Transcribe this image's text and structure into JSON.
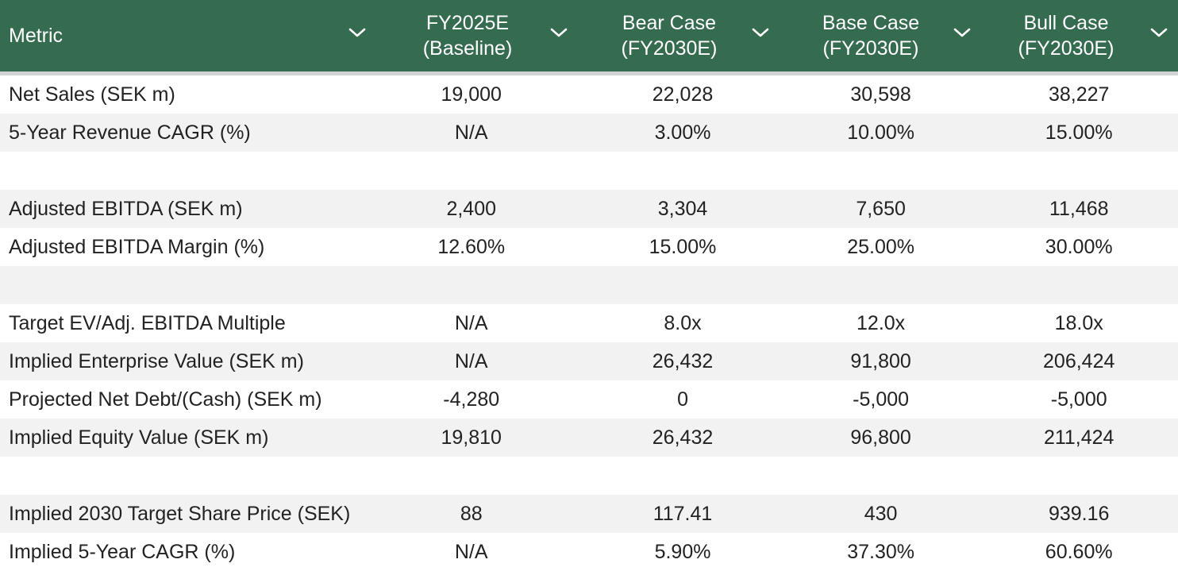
{
  "table": {
    "columns": [
      {
        "label": "Metric"
      },
      {
        "label": "FY2025E\n(Baseline)"
      },
      {
        "label": "Bear Case\n(FY2030E)"
      },
      {
        "label": "Base Case\n(FY2030E)"
      },
      {
        "label": "Bull Case\n(FY2030E)"
      }
    ],
    "rows": [
      {
        "metric": "Net Sales (SEK m)",
        "values": [
          "19,000",
          "22,028",
          "30,598",
          "38,227"
        ]
      },
      {
        "metric": "5-Year Revenue CAGR (%)",
        "values": [
          "N/A",
          "3.00%",
          "10.00%",
          "15.00%"
        ]
      },
      {
        "metric": "",
        "values": [
          "",
          "",
          "",
          ""
        ]
      },
      {
        "metric": "Adjusted EBITDA (SEK m)",
        "values": [
          "2,400",
          "3,304",
          "7,650",
          "11,468"
        ]
      },
      {
        "metric": "Adjusted EBITDA Margin (%)",
        "values": [
          "12.60%",
          "15.00%",
          "25.00%",
          "30.00%"
        ]
      },
      {
        "metric": "",
        "values": [
          "",
          "",
          "",
          ""
        ]
      },
      {
        "metric": "Target EV/Adj. EBITDA Multiple",
        "values": [
          "N/A",
          "8.0x",
          "12.0x",
          "18.0x"
        ]
      },
      {
        "metric": "Implied Enterprise Value (SEK m)",
        "values": [
          "N/A",
          "26,432",
          "91,800",
          "206,424"
        ]
      },
      {
        "metric": "Projected Net Debt/(Cash) (SEK m)",
        "values": [
          "-4,280",
          "0",
          "-5,000",
          "-5,000"
        ]
      },
      {
        "metric": "Implied Equity Value (SEK m)",
        "values": [
          "19,810",
          "26,432",
          "96,800",
          "211,424"
        ]
      },
      {
        "metric": "",
        "values": [
          "",
          "",
          "",
          ""
        ]
      },
      {
        "metric": "Implied 2030 Target Share Price (SEK)",
        "values": [
          "88",
          "117.41",
          "430",
          "939.16"
        ]
      },
      {
        "metric": "Implied 5-Year CAGR (%)",
        "values": [
          "N/A",
          "5.90%",
          "37.30%",
          "60.60%"
        ]
      }
    ]
  },
  "icons": {
    "sort": "chevron-down-icon"
  },
  "colors": {
    "header_bg": "#356b4f",
    "stripe": "#f2f2f2",
    "header_border": "#d3d3d3"
  }
}
